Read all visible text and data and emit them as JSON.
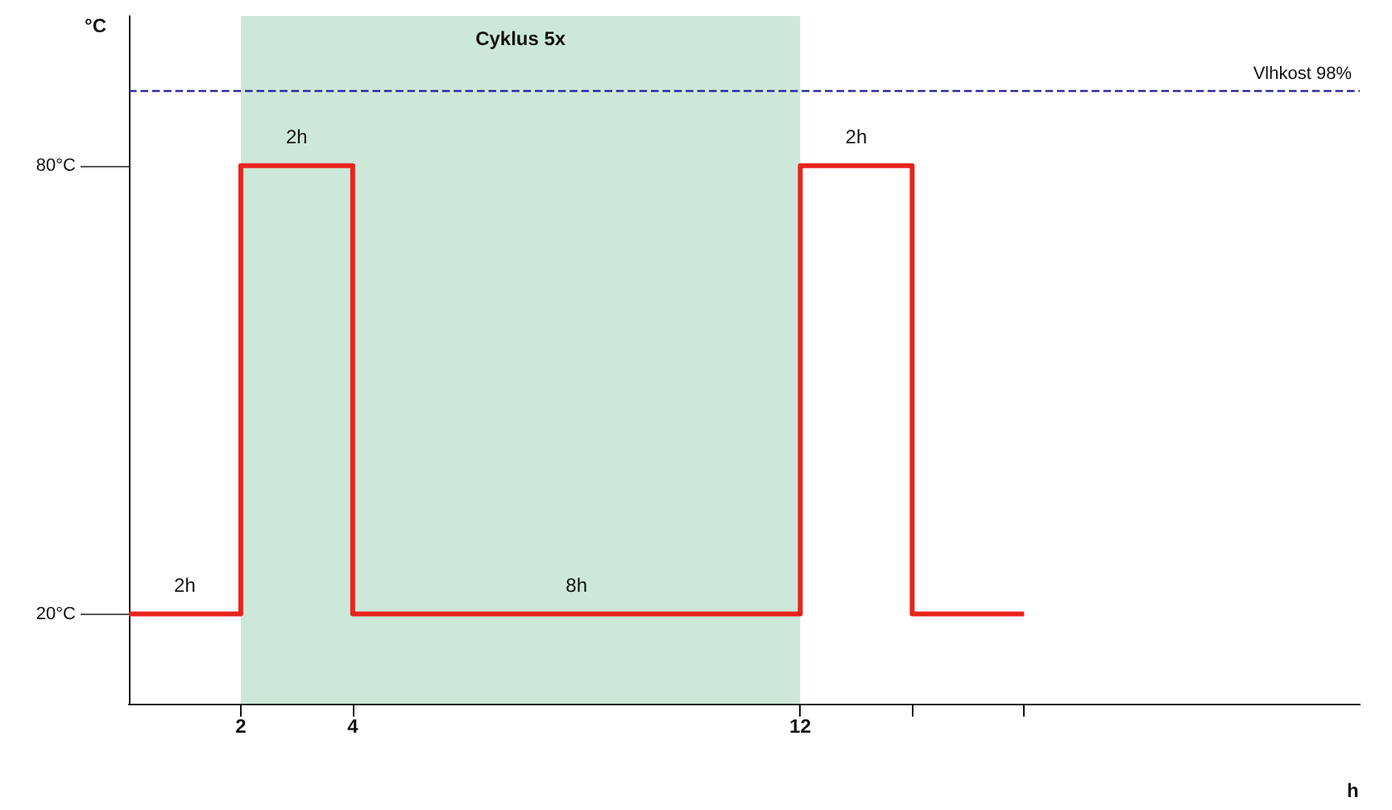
{
  "chart_data": {
    "type": "step",
    "ylabel": "°C",
    "xlabel": "h",
    "x": [
      0,
      2,
      4,
      12,
      14,
      16
    ],
    "series": [
      {
        "color": "#e8231c",
        "values": [
          20,
          80,
          20,
          80,
          20,
          20
        ]
      }
    ],
    "xlim": [
      0,
      22
    ],
    "xticks": [
      2,
      4,
      12,
      {
        "value": 14,
        "label": null
      },
      {
        "value": 16,
        "label": null
      }
    ],
    "ylim": [
      8,
      100
    ],
    "yticks": [
      {
        "value": 20,
        "label": "20°C"
      },
      {
        "value": 80,
        "label": "80°C"
      }
    ],
    "bands": [
      {
        "axis": "x",
        "from": 2,
        "to": 12,
        "label": "Cyklus 5x",
        "color": "#cde8d8"
      }
    ],
    "ref_lines": [
      {
        "axis": "y",
        "value": 90,
        "label": "Vlhkost 98%",
        "color": "#2a2a9a",
        "line_style": "dashed"
      }
    ],
    "annotations": [
      {
        "text": "2h",
        "x": 1,
        "y": 20
      },
      {
        "text": "2h",
        "x": 3,
        "y": 80
      },
      {
        "text": "8h",
        "x": 8,
        "y": 20
      },
      {
        "text": "2h",
        "x": 13,
        "y": 80
      }
    ],
    "grid": false,
    "marker": "none",
    "line_style": "solid"
  }
}
